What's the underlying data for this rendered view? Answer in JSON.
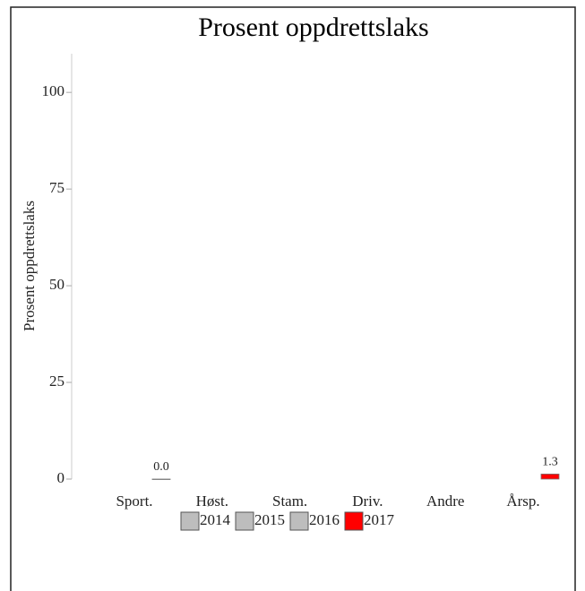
{
  "chart_data": {
    "type": "bar",
    "title": "Prosent oppdrettslaks",
    "y_label": "Prosent oppdrettslaks",
    "categories": [
      "Sport.",
      "Høst.",
      "Stam.",
      "Driv.",
      "Andre",
      "Årsp."
    ],
    "series": [
      {
        "name": "2014",
        "color": "#bdbdbd",
        "values": [
          null,
          null,
          null,
          null,
          null,
          null
        ]
      },
      {
        "name": "2015",
        "color": "#bdbdbd",
        "values": [
          null,
          null,
          null,
          null,
          null,
          null
        ]
      },
      {
        "name": "2016",
        "color": "#bdbdbd",
        "values": [
          null,
          null,
          null,
          null,
          null,
          null
        ]
      },
      {
        "name": "2017",
        "color": "#ff0000",
        "values": [
          0,
          null,
          null,
          null,
          null,
          1.3
        ],
        "value_labels": [
          "0.0",
          null,
          null,
          null,
          null,
          "1.3"
        ]
      }
    ],
    "ylim": [
      0,
      110
    ],
    "yticks": [
      0,
      25,
      50,
      75,
      100
    ],
    "grid": false
  }
}
